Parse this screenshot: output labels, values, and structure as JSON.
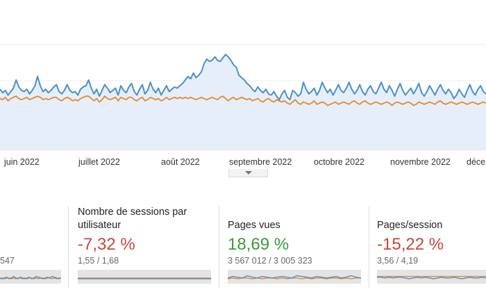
{
  "timeline": {
    "months": [
      "juin 2022",
      "juillet 2022",
      "août 2022",
      "septembre 2022",
      "octobre 2022",
      "novembre 2022",
      "déce"
    ],
    "colors": {
      "current": "#4a8fc9",
      "previous": "#e9862e",
      "fill": "#e6eff9"
    }
  },
  "chart_data": {
    "type": "line",
    "x_range": [
      "2022-05-27",
      "2022-12-02"
    ],
    "series": [
      {
        "values": [
          52,
          49,
          51,
          47,
          50,
          53,
          60,
          54,
          51,
          50,
          52,
          48,
          51,
          55,
          63,
          55,
          50,
          52,
          49,
          51,
          54,
          56,
          50,
          48,
          51,
          56,
          51,
          49,
          50,
          47,
          52,
          54,
          55,
          60,
          53,
          48,
          52,
          46,
          51,
          56,
          53,
          49,
          51,
          53,
          47,
          55,
          51,
          49,
          54,
          57,
          50,
          47,
          52,
          56,
          48,
          51,
          58,
          52,
          49,
          53,
          47,
          51,
          55,
          50,
          52,
          54,
          53,
          55,
          57,
          60,
          63,
          61,
          66,
          62,
          64,
          67,
          74,
          78,
          76,
          77,
          80,
          77,
          76,
          79,
          82,
          80,
          77,
          73,
          71,
          64,
          62,
          60,
          57,
          55,
          52,
          50,
          54,
          51,
          49,
          52,
          48,
          47,
          50,
          46,
          43,
          48,
          51,
          45,
          43,
          51,
          49,
          46,
          48,
          58,
          52,
          48,
          50,
          53,
          47,
          51,
          58,
          53,
          49,
          52,
          47,
          51,
          56,
          51,
          49,
          53,
          58,
          52,
          48,
          51,
          56,
          50,
          47,
          52,
          55,
          50,
          48,
          53,
          58,
          52,
          49,
          55,
          51,
          46,
          52,
          57,
          51,
          47,
          50,
          53,
          48,
          52,
          57,
          49,
          46,
          50,
          55,
          51,
          47,
          52,
          56,
          51,
          48,
          52,
          49,
          44,
          47,
          52,
          48,
          45,
          51,
          56,
          50,
          47,
          52,
          55,
          50,
          48
        ]
      },
      {
        "values": [
          44,
          43,
          45,
          42,
          44,
          45,
          46,
          44,
          43,
          44,
          45,
          43,
          44,
          45,
          46,
          45,
          43,
          44,
          43,
          44,
          45,
          45,
          43,
          42,
          44,
          45,
          44,
          42,
          43,
          42,
          44,
          45,
          46,
          46,
          44,
          42,
          44,
          41,
          43,
          46,
          44,
          43,
          44,
          45,
          42,
          45,
          44,
          43,
          45,
          45,
          43,
          42,
          44,
          45,
          42,
          43,
          45,
          44,
          43,
          44,
          42,
          43,
          45,
          43,
          44,
          45,
          44,
          45,
          44,
          45,
          44,
          45,
          44,
          43,
          44,
          45,
          44,
          43,
          44,
          45,
          44,
          43,
          45,
          46,
          44,
          42,
          44,
          45,
          43,
          44,
          45,
          44,
          43,
          44,
          42,
          43,
          44,
          42,
          41,
          43,
          44,
          42,
          41,
          43,
          42,
          41,
          42,
          40,
          39,
          41,
          43,
          40,
          39,
          41,
          40,
          39,
          40,
          42,
          39,
          40,
          41,
          40,
          38,
          39,
          40,
          41,
          39,
          40,
          41,
          40,
          39,
          41,
          42,
          40,
          39,
          41,
          42,
          40,
          39,
          40,
          41,
          40,
          39,
          40,
          41,
          40,
          38,
          40,
          41,
          40,
          39,
          40,
          41,
          40,
          38,
          39,
          41,
          40,
          39,
          40,
          41,
          40,
          39,
          41,
          42,
          40,
          39,
          40,
          41,
          40,
          39,
          40,
          41,
          40,
          39,
          40,
          41,
          40,
          39,
          40,
          41,
          40
        ]
      }
    ],
    "y_range": [
      0,
      90
    ],
    "grid": true
  },
  "metrics": [
    {
      "name": "partial",
      "title": "",
      "pct": "",
      "cmp": "547",
      "pct_class": "neg",
      "spark": {
        "current": [
          6,
          5,
          6,
          7,
          5,
          6,
          8,
          6,
          5,
          7,
          6,
          5,
          6,
          7,
          5,
          6,
          8,
          7,
          6,
          5,
          6,
          7,
          6,
          8,
          7,
          6,
          5,
          6
        ],
        "previous": [
          5,
          6,
          5,
          6,
          6,
          5,
          6,
          5,
          6,
          6,
          5,
          6,
          5,
          6,
          6,
          5,
          6,
          5,
          6,
          6,
          5,
          6,
          6,
          5,
          6,
          5,
          6,
          6
        ]
      }
    },
    {
      "name": "sessions-per-user",
      "title": "Nombre de sessions par utilisateur",
      "pct": "-7,32 %",
      "cmp": "1,55 / 1,68",
      "pct_class": "neg",
      "spark": {
        "current": [
          5,
          5,
          5,
          5,
          5,
          5,
          5,
          5,
          5,
          5,
          5,
          5,
          5,
          5,
          5,
          5,
          5,
          5,
          5,
          5,
          5,
          5,
          5,
          5,
          5,
          5,
          5,
          5
        ],
        "previous": [
          6,
          6,
          6,
          6,
          6,
          6,
          6,
          6,
          6,
          6,
          6,
          6,
          6,
          6,
          6,
          6,
          6,
          6,
          6,
          6,
          6,
          6,
          6,
          6,
          6,
          6,
          6,
          6
        ]
      }
    },
    {
      "name": "page-views",
      "title": "Pages vues",
      "pct": "18,69 %",
      "cmp": "3 567 012 / 3 005 323",
      "pct_class": "pos",
      "spark": {
        "current": [
          6,
          8,
          7,
          6,
          9,
          7,
          6,
          8,
          7,
          6,
          7,
          8,
          7,
          6,
          9,
          8,
          7,
          6,
          8,
          7,
          6,
          7,
          8,
          6,
          7,
          9,
          7,
          6
        ],
        "previous": [
          5,
          6,
          5,
          6,
          6,
          5,
          6,
          5,
          6,
          6,
          5,
          6,
          5,
          6,
          6,
          5,
          6,
          5,
          6,
          6,
          5,
          6,
          6,
          5,
          6,
          5,
          6,
          6
        ]
      }
    },
    {
      "name": "pages-per-session",
      "title": "Pages/session",
      "pct": "-15,22 %",
      "cmp": "3,56 / 4,19",
      "pct_class": "neg",
      "spark": {
        "current": [
          7,
          7,
          6,
          7,
          6,
          7,
          7,
          6,
          5,
          6,
          7,
          6,
          7,
          6,
          5,
          6,
          7,
          6,
          6,
          7,
          6,
          5,
          6,
          7,
          6,
          6,
          7,
          6
        ],
        "previous": [
          8,
          8,
          8,
          8,
          8,
          8,
          8,
          8,
          8,
          8,
          8,
          8,
          8,
          8,
          8,
          8,
          8,
          8,
          8,
          8,
          8,
          8,
          8,
          8,
          8,
          8,
          8,
          8
        ]
      }
    }
  ]
}
